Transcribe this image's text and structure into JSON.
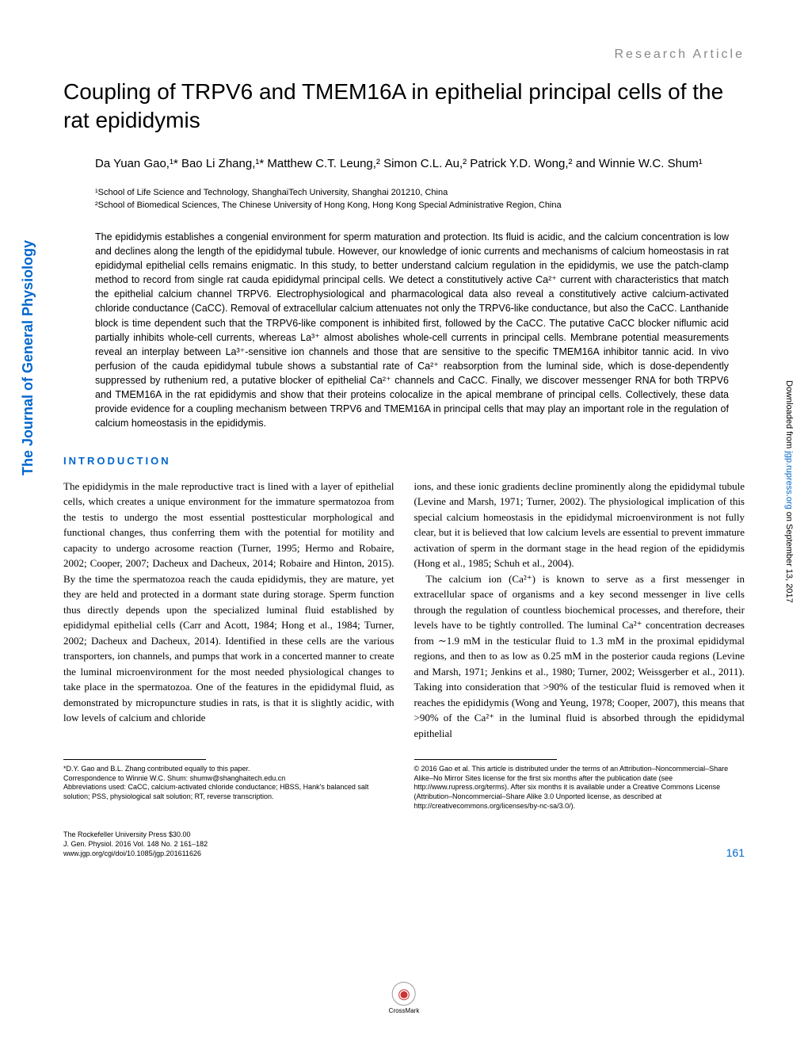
{
  "article_type": "Research Article",
  "title": "Coupling of TRPV6 and TMEM16A in epithelial principal cells of the rat epididymis",
  "authors": "Da Yuan Gao,¹* Bao Li Zhang,¹* Matthew C.T. Leung,² Simon C.L. Au,² Patrick Y.D. Wong,² and Winnie W.C. Shum¹",
  "affiliations": {
    "aff1": "¹School of Life Science and Technology, ShanghaiTech University, Shanghai 201210, China",
    "aff2": "²School of Biomedical Sciences, The Chinese University of Hong Kong, Hong Kong Special Administrative Region, China"
  },
  "abstract": "The epididymis establishes a congenial environment for sperm maturation and protection. Its fluid is acidic, and the calcium concentration is low and declines along the length of the epididymal tubule. However, our knowledge of ionic currents and mechanisms of calcium homeostasis in rat epididymal epithelial cells remains enigmatic. In this study, to better understand calcium regulation in the epididymis, we use the patch-clamp method to record from single rat cauda epididymal principal cells. We detect a constitutively active Ca²⁺ current with characteristics that match the epithelial calcium channel TRPV6. Electrophysiological and pharmacological data also reveal a constitutively active calcium-activated chloride conductance (CaCC). Removal of extracellular calcium attenuates not only the TRPV6-like conductance, but also the CaCC. Lanthanide block is time dependent such that the TRPV6-like component is inhibited first, followed by the CaCC. The putative CaCC blocker niflumic acid partially inhibits whole-cell currents, whereas La³⁺ almost abolishes whole-cell currents in principal cells. Membrane potential measurements reveal an interplay between La³⁺-sensitive ion channels and those that are sensitive to the specific TMEM16A inhibitor tannic acid. In vivo perfusion of the cauda epididymal tubule shows a substantial rate of Ca²⁺ reabsorption from the luminal side, which is dose-dependently suppressed by ruthenium red, a putative blocker of epithelial Ca²⁺ channels and CaCC. Finally, we discover messenger RNA for both TRPV6 and TMEM16A in the rat epididymis and show that their proteins colocalize in the apical membrane of principal cells. Collectively, these data provide evidence for a coupling mechanism between TRPV6 and TMEM16A in principal cells that may play an important role in the regulation of calcium homeostasis in the epididymis.",
  "section_header": "INTRODUCTION",
  "body": {
    "col1": "The epididymis in the male reproductive tract is lined with a layer of epithelial cells, which creates a unique environment for the immature spermatozoa from the testis to undergo the most essential posttesticular morphological and functional changes, thus conferring them with the potential for motility and capacity to undergo acrosome reaction (Turner, 1995; Hermo and Robaire, 2002; Cooper, 2007; Dacheux and Dacheux, 2014; Robaire and Hinton, 2015). By the time the spermatozoa reach the cauda epididymis, they are mature, yet they are held and protected in a dormant state during storage. Sperm function thus directly depends upon the specialized luminal fluid established by epididymal epithelial cells (Carr and Acott, 1984; Hong et al., 1984; Turner, 2002; Dacheux and Dacheux, 2014). Identified in these cells are the various transporters, ion channels, and pumps that work in a concerted manner to create the luminal microenvironment for the most needed physiological changes to take place in the spermatozoa. One of the features in the epididymal fluid, as demonstrated by micropuncture studies in rats, is that it is slightly acidic, with low levels of calcium and chloride",
    "col2_p1": "ions, and these ionic gradients decline prominently along the epididymal tubule (Levine and Marsh, 1971; Turner, 2002). The physiological implication of this special calcium homeostasis in the epididymal microenvironment is not fully clear, but it is believed that low calcium levels are essential to prevent immature activation of sperm in the dormant stage in the head region of the epididymis (Hong et al., 1985; Schuh et al., 2004).",
    "col2_p2": "The calcium ion (Ca²⁺) is known to serve as a first messenger in extracellular space of organisms and a key second messenger in live cells through the regulation of countless biochemical processes, and therefore, their levels have to be tightly controlled. The luminal Ca²⁺ concentration decreases from ∼1.9 mM in the testicular fluid to 1.3 mM in the proximal epididymal regions, and then to as low as 0.25 mM in the posterior cauda regions (Levine and Marsh, 1971; Jenkins et al., 1980; Turner, 2002; Weissgerber et al., 2011). Taking into consideration that >90% of the testicular fluid is removed when it reaches the epididymis (Wong and Yeung, 1978; Cooper, 2007), this means that >90% of the Ca²⁺ in the luminal fluid is absorbed through the epididymal epithelial"
  },
  "footnotes": {
    "left": {
      "contrib": "*D.Y. Gao and B.L. Zhang contributed equally to this paper.",
      "correspondence": "Correspondence to Winnie W.C. Shum: shumw@shanghaitech.edu.cn",
      "abbrev": "Abbreviations used: CaCC, calcium-activated chloride conductance; HBSS, Hank's balanced salt solution; PSS, physiological salt solution; RT, reverse transcription."
    },
    "right": "© 2016 Gao et al. This article is distributed under the terms of an Attribution–Noncommercial–Share Alike–No Mirror Sites license for the first six months after the publication date (see http://www.rupress.org/terms). After six months it is available under a Creative Commons License (Attribution–Noncommercial–Share Alike 3.0 Unported license, as described at http://creativecommons.org/licenses/by-nc-sa/3.0/)."
  },
  "pub_info": {
    "line1": "The Rockefeller University Press   $30.00",
    "line2": "J. Gen. Physiol. 2016 Vol. 148 No. 2   161–182",
    "line3": "www.jgp.org/cgi/doi/10.1085/jgp.201611626"
  },
  "page_number": "161",
  "sidebar_left": "The Journal of General Physiology",
  "sidebar_right_prefix": "Downloaded from ",
  "sidebar_right_link": "jgp.rupress.org",
  "sidebar_right_suffix": " on September 13, 2017",
  "crossmark_label": "CrossMark",
  "colors": {
    "accent": "#0066cc",
    "gray": "#888888"
  }
}
